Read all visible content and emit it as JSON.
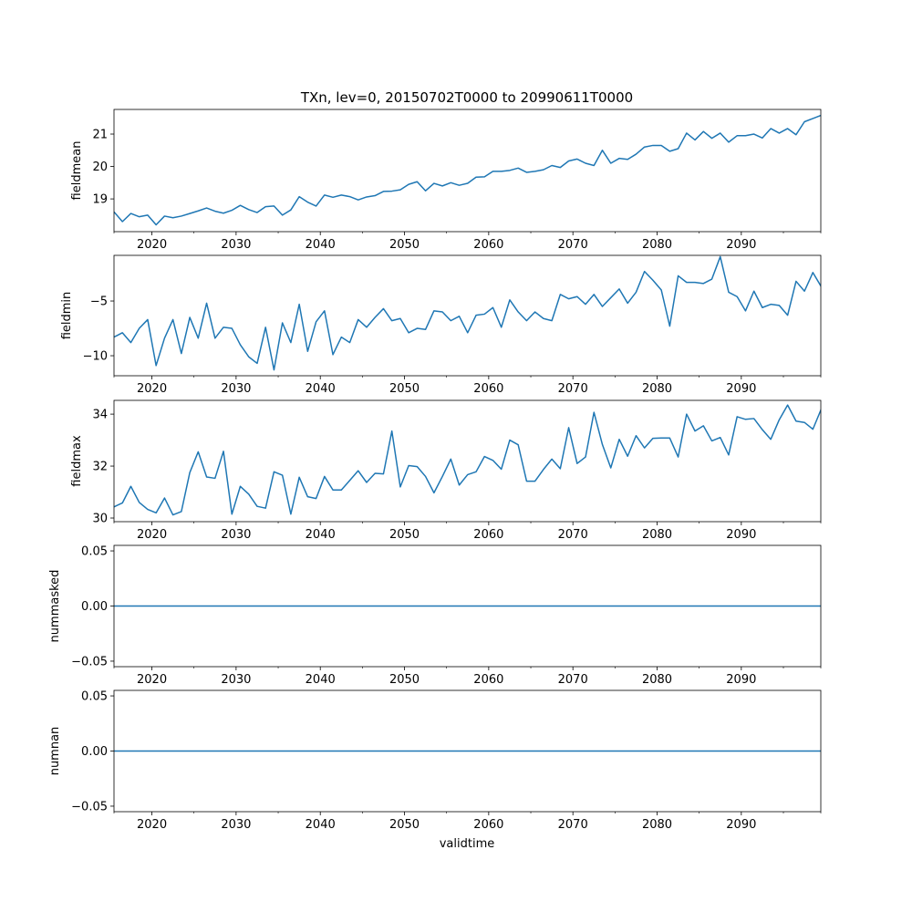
{
  "title": "TXn, lev=0, 20150702T0000 to 20990611T0000",
  "xlabel": "validtime",
  "line_color": "#1f77b4",
  "chart_data": [
    {
      "type": "line",
      "ylabel": "fieldmean",
      "xlim": [
        2015.5,
        2099.44
      ],
      "ylim": [
        17.99,
        21.76
      ],
      "xticks": [
        2020,
        2030,
        2040,
        2050,
        2060,
        2070,
        2080,
        2090
      ],
      "xtick_labels": [
        "2020",
        "2030",
        "2040",
        "2050",
        "2060",
        "2070",
        "2080",
        "2090"
      ],
      "yticks": [
        19,
        20,
        21
      ],
      "ytick_labels": [
        "19",
        "20",
        "21"
      ],
      "x_start": 2015.5,
      "x_step": 1,
      "values": [
        18.6,
        18.3,
        18.55,
        18.45,
        18.5,
        18.2,
        18.47,
        18.42,
        18.47,
        18.55,
        18.63,
        18.72,
        18.62,
        18.56,
        18.65,
        18.8,
        18.67,
        18.58,
        18.76,
        18.78,
        18.5,
        18.66,
        19.07,
        18.9,
        18.78,
        19.12,
        19.05,
        19.12,
        19.07,
        18.97,
        19.06,
        19.1,
        19.23,
        19.24,
        19.28,
        19.45,
        19.53,
        19.25,
        19.48,
        19.4,
        19.5,
        19.42,
        19.48,
        19.67,
        19.68,
        19.85,
        19.85,
        19.88,
        19.95,
        19.82,
        19.85,
        19.9,
        20.03,
        19.97,
        20.17,
        20.23,
        20.1,
        20.03,
        20.5,
        20.1,
        20.25,
        20.22,
        20.38,
        20.6,
        20.65,
        20.65,
        20.47,
        20.55,
        21.03,
        20.82,
        21.08,
        20.87,
        21.03,
        20.75,
        20.95,
        20.95,
        21.0,
        20.88,
        21.17,
        21.03,
        21.17,
        20.98,
        21.38,
        21.48,
        21.58
      ]
    },
    {
      "type": "line",
      "ylabel": "fieldmin",
      "xlim": [
        2015.5,
        2099.44
      ],
      "ylim": [
        -11.83,
        -0.83
      ],
      "xticks": [
        2020,
        2030,
        2040,
        2050,
        2060,
        2070,
        2080,
        2090
      ],
      "xtick_labels": [
        "2020",
        "2030",
        "2040",
        "2050",
        "2060",
        "2070",
        "2080",
        "2090"
      ],
      "yticks": [
        -10,
        -5
      ],
      "ytick_labels": [
        "−10",
        "−5"
      ],
      "x_start": 2015.5,
      "x_step": 1,
      "values": [
        -8.3,
        -7.9,
        -8.8,
        -7.5,
        -6.7,
        -10.9,
        -8.4,
        -6.7,
        -9.8,
        -6.5,
        -8.4,
        -5.2,
        -8.4,
        -7.4,
        -7.5,
        -9.0,
        -10.1,
        -10.7,
        -7.4,
        -11.3,
        -7.0,
        -8.8,
        -5.3,
        -9.6,
        -6.9,
        -5.9,
        -9.9,
        -8.3,
        -8.8,
        -6.7,
        -7.4,
        -6.5,
        -5.7,
        -6.8,
        -6.6,
        -7.9,
        -7.5,
        -7.6,
        -5.9,
        -6.0,
        -6.8,
        -6.4,
        -7.9,
        -6.3,
        -6.2,
        -5.6,
        -7.4,
        -4.9,
        -6.0,
        -6.8,
        -6.0,
        -6.6,
        -6.8,
        -4.4,
        -4.8,
        -4.6,
        -5.3,
        -4.4,
        -5.5,
        -4.7,
        -3.9,
        -5.2,
        -4.2,
        -2.3,
        -3.1,
        -4.0,
        -7.3,
        -2.7,
        -3.3,
        -3.3,
        -3.4,
        -3.0,
        -0.95,
        -4.2,
        -4.6,
        -5.9,
        -4.1,
        -5.6,
        -5.3,
        -5.4,
        -6.3,
        -3.2,
        -4.1,
        -2.4,
        -3.7
      ]
    },
    {
      "type": "line",
      "ylabel": "fieldmax",
      "xlim": [
        2015.5,
        2099.44
      ],
      "ylim": [
        29.86,
        34.53
      ],
      "xticks": [
        2020,
        2030,
        2040,
        2050,
        2060,
        2070,
        2080,
        2090
      ],
      "xtick_labels": [
        "2020",
        "2030",
        "2040",
        "2050",
        "2060",
        "2070",
        "2080",
        "2090"
      ],
      "yticks": [
        30,
        32,
        34
      ],
      "ytick_labels": [
        "30",
        "32",
        "34"
      ],
      "x_start": 2015.5,
      "x_step": 1,
      "values": [
        30.43,
        30.58,
        31.22,
        30.6,
        30.33,
        30.2,
        30.77,
        30.12,
        30.25,
        31.75,
        32.55,
        31.58,
        31.53,
        32.57,
        30.15,
        31.22,
        30.92,
        30.45,
        30.38,
        31.78,
        31.65,
        30.15,
        31.57,
        30.82,
        30.75,
        31.6,
        31.08,
        31.08,
        31.45,
        31.82,
        31.37,
        31.72,
        31.7,
        33.35,
        31.2,
        32.02,
        31.98,
        31.6,
        30.97,
        31.6,
        32.27,
        31.27,
        31.67,
        31.78,
        32.37,
        32.22,
        31.88,
        33.0,
        32.82,
        31.42,
        31.42,
        31.87,
        32.27,
        31.9,
        33.48,
        32.1,
        32.35,
        34.07,
        32.83,
        31.93,
        33.03,
        32.38,
        33.17,
        32.7,
        33.07,
        33.08,
        33.08,
        32.35,
        34.0,
        33.35,
        33.55,
        32.97,
        33.1,
        32.43,
        33.9,
        33.8,
        33.83,
        33.4,
        33.03,
        33.78,
        34.35,
        33.73,
        33.68,
        33.42,
        34.2
      ]
    },
    {
      "type": "line",
      "ylabel": "nummasked",
      "xlim": [
        2015.5,
        2099.44
      ],
      "ylim": [
        -0.055,
        0.055
      ],
      "xticks": [
        2020,
        2030,
        2040,
        2050,
        2060,
        2070,
        2080,
        2090
      ],
      "xtick_labels": [
        "2020",
        "2030",
        "2040",
        "2050",
        "2060",
        "2070",
        "2080",
        "2090"
      ],
      "yticks": [
        -0.05,
        0.0,
        0.05
      ],
      "ytick_labels": [
        "−0.05",
        "0.00",
        "0.05"
      ],
      "x_start": 2015.5,
      "x_step": 1,
      "constant_value": 0.0
    },
    {
      "type": "line",
      "ylabel": "numnan",
      "xlim": [
        2015.5,
        2099.44
      ],
      "ylim": [
        -0.055,
        0.055
      ],
      "xticks": [
        2020,
        2030,
        2040,
        2050,
        2060,
        2070,
        2080,
        2090
      ],
      "xtick_labels": [
        "2020",
        "2030",
        "2040",
        "2050",
        "2060",
        "2070",
        "2080",
        "2090"
      ],
      "yticks": [
        -0.05,
        0.0,
        0.05
      ],
      "ytick_labels": [
        "−0.05",
        "0.00",
        "0.05"
      ],
      "x_start": 2015.5,
      "x_step": 1,
      "constant_value": 0.0
    }
  ]
}
